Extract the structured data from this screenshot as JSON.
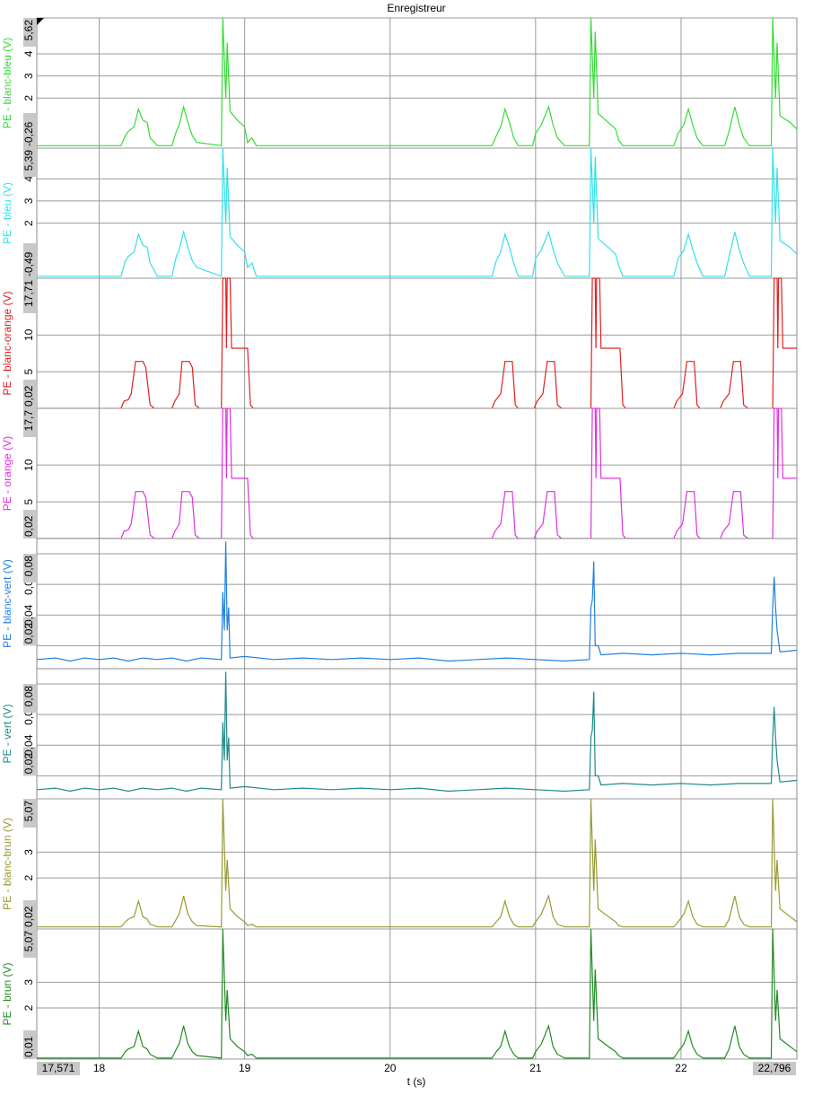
{
  "title": "Enregistreur",
  "chart_data": [
    {
      "type": "line",
      "ylabel": "PE - blanc-bleu (V)",
      "color": "#33dd33",
      "xlim": [
        17.571,
        22.796
      ],
      "ylim": [
        -0.26,
        5.62
      ],
      "yticks": [
        {
          "value": -0.26,
          "label": "-0,26"
        },
        2,
        3,
        4,
        {
          "value": 5.62,
          "label": "5,62"
        }
      ],
      "x": [
        17.571,
        18.15,
        18.18,
        18.2,
        18.24,
        18.27,
        18.3,
        18.33,
        18.35,
        18.4,
        18.5,
        18.53,
        18.55,
        18.58,
        18.61,
        18.64,
        18.67,
        18.84,
        18.85,
        18.87,
        18.88,
        18.9,
        18.95,
        19.0,
        19.02,
        19.05,
        19.08,
        20.7,
        20.73,
        20.76,
        20.79,
        20.82,
        20.85,
        20.88,
        20.98,
        21.0,
        21.04,
        21.09,
        21.12,
        21.15,
        21.2,
        21.37,
        21.38,
        21.4,
        21.41,
        21.43,
        21.5,
        21.55,
        21.57,
        21.6,
        21.95,
        21.98,
        22.02,
        22.05,
        22.08,
        22.11,
        22.15,
        22.3,
        22.33,
        22.37,
        22.4,
        22.43,
        22.47,
        22.62,
        22.63,
        22.65,
        22.66,
        22.68,
        22.75,
        22.796
      ],
      "values": [
        -0.15,
        -0.15,
        0.3,
        0.5,
        0.7,
        1.5,
        1.0,
        0.9,
        0.2,
        -0.15,
        -0.15,
        0.5,
        0.8,
        1.6,
        0.9,
        0.3,
        0.0,
        -0.15,
        5.62,
        2.0,
        4.5,
        1.4,
        1.0,
        0.7,
        0.0,
        0.2,
        -0.15,
        -0.15,
        0.3,
        0.7,
        1.5,
        0.9,
        0.2,
        -0.15,
        -0.15,
        0.4,
        0.8,
        1.6,
        0.8,
        0.2,
        -0.15,
        -0.15,
        5.62,
        2.0,
        5.0,
        1.3,
        0.9,
        0.6,
        0.1,
        -0.15,
        -0.15,
        0.4,
        0.8,
        1.5,
        0.8,
        0.2,
        -0.15,
        -0.15,
        0.5,
        1.6,
        0.8,
        0.2,
        -0.15,
        -0.15,
        5.62,
        2.0,
        4.5,
        1.2,
        0.9,
        0.6
      ]
    },
    {
      "type": "line",
      "ylabel": "PE - bleu (V)",
      "color": "#33e0ea",
      "xlim": [
        17.571,
        22.796
      ],
      "ylim": [
        -0.49,
        5.39
      ],
      "yticks": [
        {
          "value": -0.49,
          "label": "-0,49"
        },
        2,
        3,
        4,
        {
          "value": 5.39,
          "label": "5,39"
        }
      ],
      "x": [
        17.571,
        18.15,
        18.18,
        18.2,
        18.24,
        18.27,
        18.3,
        18.33,
        18.35,
        18.4,
        18.5,
        18.53,
        18.55,
        18.58,
        18.61,
        18.64,
        18.67,
        18.84,
        18.85,
        18.87,
        18.88,
        18.9,
        18.95,
        19.0,
        19.02,
        19.05,
        19.08,
        20.7,
        20.73,
        20.76,
        20.79,
        20.82,
        20.85,
        20.88,
        20.98,
        21.0,
        21.04,
        21.09,
        21.12,
        21.15,
        21.2,
        21.37,
        21.38,
        21.4,
        21.41,
        21.43,
        21.5,
        21.55,
        21.57,
        21.6,
        21.95,
        21.98,
        22.02,
        22.05,
        22.08,
        22.11,
        22.15,
        22.3,
        22.33,
        22.37,
        22.4,
        22.43,
        22.47,
        22.62,
        22.63,
        22.65,
        22.66,
        22.68,
        22.75,
        22.796
      ],
      "values": [
        -0.4,
        -0.4,
        0.3,
        0.5,
        0.7,
        1.5,
        1.0,
        0.9,
        0.2,
        -0.4,
        -0.4,
        0.5,
        0.8,
        1.6,
        0.9,
        0.3,
        0.0,
        -0.4,
        5.39,
        2.0,
        4.5,
        1.4,
        1.0,
        0.7,
        0.0,
        0.2,
        -0.4,
        -0.4,
        0.3,
        0.7,
        1.5,
        0.9,
        0.2,
        -0.4,
        -0.4,
        0.4,
        0.8,
        1.6,
        0.8,
        0.2,
        -0.4,
        -0.4,
        5.39,
        2.0,
        5.0,
        1.3,
        0.9,
        0.6,
        0.1,
        -0.4,
        -0.4,
        0.4,
        0.8,
        1.5,
        0.8,
        0.2,
        -0.4,
        -0.4,
        0.5,
        1.6,
        0.8,
        0.2,
        -0.4,
        -0.4,
        5.39,
        2.0,
        4.5,
        1.2,
        0.9,
        0.6
      ]
    },
    {
      "type": "line",
      "ylabel": "PE - blanc-orange (V)",
      "color": "#e02020",
      "xlim": [
        17.571,
        22.796
      ],
      "ylim": [
        0.02,
        17.71
      ],
      "yticks": [
        {
          "value": 0.02,
          "label": "0,02"
        },
        5,
        10,
        {
          "value": 17.71,
          "label": "17,71"
        }
      ],
      "x": [
        17.571,
        18.15,
        18.17,
        18.2,
        18.22,
        18.25,
        18.3,
        18.32,
        18.35,
        18.38,
        18.5,
        18.52,
        18.55,
        18.57,
        18.62,
        18.64,
        18.66,
        18.69,
        18.84,
        18.85,
        18.87,
        18.875,
        18.88,
        18.9,
        18.91,
        19.02,
        19.04,
        19.06,
        20.7,
        20.72,
        20.76,
        20.79,
        20.84,
        20.86,
        20.88,
        20.99,
        21.01,
        21.05,
        21.08,
        21.13,
        21.15,
        21.18,
        21.38,
        21.39,
        21.41,
        21.415,
        21.42,
        21.44,
        21.45,
        21.58,
        21.6,
        21.62,
        21.95,
        21.97,
        22.01,
        22.04,
        22.09,
        22.11,
        22.13,
        22.27,
        22.29,
        22.33,
        22.36,
        22.41,
        22.43,
        22.46,
        22.63,
        22.64,
        22.66,
        22.665,
        22.67,
        22.69,
        22.7,
        22.796
      ],
      "values": [
        0.02,
        0.02,
        1.0,
        1.2,
        2.0,
        6.4,
        6.4,
        5.6,
        0.5,
        0.02,
        0.02,
        1.0,
        2.0,
        6.4,
        6.4,
        5.6,
        0.5,
        0.02,
        0.02,
        17.71,
        17.71,
        8.2,
        17.71,
        17.71,
        8.2,
        8.2,
        0.5,
        0.02,
        0.02,
        1.0,
        2.0,
        6.4,
        6.4,
        0.5,
        0.02,
        0.02,
        1.0,
        2.0,
        6.4,
        6.4,
        0.5,
        0.02,
        0.02,
        17.71,
        17.71,
        8.2,
        17.71,
        17.71,
        8.2,
        8.2,
        0.5,
        0.02,
        0.02,
        1.0,
        2.0,
        6.4,
        6.4,
        0.5,
        0.02,
        0.02,
        1.0,
        2.0,
        6.4,
        6.4,
        0.5,
        0.02,
        0.02,
        17.71,
        17.71,
        8.2,
        17.71,
        17.71,
        8.2,
        8.2
      ]
    },
    {
      "type": "line",
      "ylabel": "PE - orange (V)",
      "color": "#e030e0",
      "xlim": [
        17.571,
        22.796
      ],
      "ylim": [
        0.02,
        17.7
      ],
      "yticks": [
        {
          "value": 0.02,
          "label": "0,02"
        },
        5,
        10,
        {
          "value": 17.7,
          "label": "17,7"
        }
      ],
      "x": [
        17.571,
        18.15,
        18.17,
        18.2,
        18.22,
        18.25,
        18.3,
        18.32,
        18.35,
        18.38,
        18.5,
        18.52,
        18.55,
        18.57,
        18.62,
        18.64,
        18.66,
        18.69,
        18.84,
        18.85,
        18.87,
        18.875,
        18.88,
        18.9,
        18.91,
        19.02,
        19.04,
        19.06,
        20.7,
        20.72,
        20.76,
        20.79,
        20.84,
        20.86,
        20.88,
        20.99,
        21.01,
        21.05,
        21.08,
        21.13,
        21.15,
        21.18,
        21.38,
        21.39,
        21.41,
        21.415,
        21.42,
        21.44,
        21.45,
        21.58,
        21.6,
        21.62,
        21.95,
        21.97,
        22.01,
        22.04,
        22.09,
        22.11,
        22.13,
        22.27,
        22.29,
        22.33,
        22.36,
        22.41,
        22.43,
        22.46,
        22.63,
        22.64,
        22.66,
        22.665,
        22.67,
        22.69,
        22.7,
        22.796
      ],
      "values": [
        0.02,
        0.02,
        1.0,
        1.2,
        2.0,
        6.4,
        6.4,
        5.6,
        0.5,
        0.02,
        0.02,
        1.0,
        2.0,
        6.4,
        6.4,
        5.6,
        0.5,
        0.02,
        0.02,
        17.7,
        17.7,
        8.2,
        17.7,
        17.7,
        8.2,
        8.2,
        0.5,
        0.02,
        0.02,
        1.0,
        2.0,
        6.4,
        6.4,
        0.5,
        0.02,
        0.02,
        1.0,
        2.0,
        6.4,
        6.4,
        0.5,
        0.02,
        0.02,
        17.7,
        17.7,
        8.2,
        17.7,
        17.7,
        8.2,
        8.2,
        0.5,
        0.02,
        0.02,
        1.0,
        2.0,
        6.4,
        6.4,
        0.5,
        0.02,
        0.02,
        1.0,
        2.0,
        6.4,
        6.4,
        0.5,
        0.02,
        0.02,
        17.7,
        17.7,
        8.2,
        17.7,
        17.7,
        8.2,
        8.2
      ]
    },
    {
      "type": "line",
      "ylabel": "PE - blanc-vert (V)",
      "color": "#2080e0",
      "xlim": [
        17.571,
        22.796
      ],
      "ylim": [
        0.005,
        0.09
      ],
      "yticks": [
        {
          "value": 0.02,
          "label": "0,02"
        },
        {
          "value": 0.04,
          "label": "0,04"
        },
        {
          "value": 0.06,
          "label": "0,06"
        },
        {
          "value": 0.08,
          "label": "0,08"
        }
      ],
      "x": [
        17.571,
        17.7,
        17.8,
        17.9,
        18.0,
        18.1,
        18.2,
        18.3,
        18.4,
        18.5,
        18.6,
        18.7,
        18.84,
        18.85,
        18.86,
        18.87,
        18.88,
        18.89,
        18.9,
        19.0,
        19.2,
        19.4,
        19.6,
        19.8,
        20.0,
        20.2,
        20.4,
        20.6,
        20.8,
        21.0,
        21.2,
        21.37,
        21.38,
        21.39,
        21.4,
        21.41,
        21.43,
        21.45,
        21.6,
        21.8,
        22.0,
        22.2,
        22.4,
        22.62,
        22.63,
        22.64,
        22.65,
        22.66,
        22.68,
        22.796
      ],
      "values": [
        0.011,
        0.012,
        0.01,
        0.012,
        0.011,
        0.012,
        0.01,
        0.012,
        0.011,
        0.012,
        0.01,
        0.012,
        0.011,
        0.055,
        0.03,
        0.088,
        0.03,
        0.045,
        0.012,
        0.013,
        0.011,
        0.012,
        0.011,
        0.012,
        0.011,
        0.012,
        0.01,
        0.011,
        0.012,
        0.011,
        0.01,
        0.011,
        0.045,
        0.05,
        0.075,
        0.02,
        0.02,
        0.014,
        0.015,
        0.014,
        0.015,
        0.014,
        0.015,
        0.015,
        0.045,
        0.065,
        0.045,
        0.03,
        0.016,
        0.017
      ]
    },
    {
      "type": "line",
      "ylabel": "PE - vert (V)",
      "color": "#1f8a8a",
      "xlim": [
        17.571,
        22.796
      ],
      "ylim": [
        0.005,
        0.09
      ],
      "yticks": [
        {
          "value": 0.02,
          "label": "0,02"
        },
        {
          "value": 0.04,
          "label": "0,04"
        },
        {
          "value": 0.06,
          "label": "0,06"
        },
        {
          "value": 0.08,
          "label": "0,08"
        }
      ],
      "x": [
        17.571,
        17.7,
        17.8,
        17.9,
        18.0,
        18.1,
        18.2,
        18.3,
        18.4,
        18.5,
        18.6,
        18.7,
        18.84,
        18.85,
        18.86,
        18.87,
        18.88,
        18.89,
        18.9,
        19.0,
        19.2,
        19.4,
        19.6,
        19.8,
        20.0,
        20.2,
        20.4,
        20.6,
        20.8,
        21.0,
        21.2,
        21.37,
        21.38,
        21.39,
        21.4,
        21.41,
        21.43,
        21.45,
        21.6,
        21.8,
        22.0,
        22.2,
        22.4,
        22.62,
        22.63,
        22.64,
        22.65,
        22.66,
        22.68,
        22.796
      ],
      "values": [
        0.011,
        0.012,
        0.01,
        0.012,
        0.011,
        0.012,
        0.01,
        0.012,
        0.011,
        0.012,
        0.01,
        0.012,
        0.011,
        0.055,
        0.03,
        0.088,
        0.03,
        0.045,
        0.012,
        0.013,
        0.011,
        0.012,
        0.011,
        0.012,
        0.011,
        0.012,
        0.01,
        0.011,
        0.012,
        0.011,
        0.01,
        0.011,
        0.045,
        0.05,
        0.075,
        0.02,
        0.02,
        0.014,
        0.015,
        0.014,
        0.015,
        0.014,
        0.015,
        0.015,
        0.045,
        0.065,
        0.045,
        0.03,
        0.016,
        0.017
      ]
    },
    {
      "type": "line",
      "ylabel": "PE - blanc-brun (V)",
      "color": "#999933",
      "xlim": [
        17.571,
        22.796
      ],
      "ylim": [
        0.02,
        5.07
      ],
      "yticks": [
        {
          "value": 0.02,
          "label": "0,02"
        },
        2,
        3,
        {
          "value": 5.07,
          "label": "5,07"
        }
      ],
      "x": [
        17.571,
        18.15,
        18.18,
        18.2,
        18.24,
        18.27,
        18.3,
        18.33,
        18.35,
        18.4,
        18.5,
        18.53,
        18.55,
        18.58,
        18.61,
        18.64,
        18.67,
        18.84,
        18.85,
        18.87,
        18.88,
        18.9,
        18.95,
        19.0,
        19.02,
        19.05,
        19.08,
        20.7,
        20.73,
        20.76,
        20.79,
        20.82,
        20.85,
        20.88,
        20.98,
        21.0,
        21.04,
        21.09,
        21.12,
        21.15,
        21.2,
        21.37,
        21.38,
        21.4,
        21.41,
        21.43,
        21.5,
        21.55,
        21.57,
        21.6,
        21.95,
        21.98,
        22.02,
        22.05,
        22.08,
        22.11,
        22.15,
        22.3,
        22.33,
        22.37,
        22.4,
        22.43,
        22.47,
        22.62,
        22.63,
        22.65,
        22.66,
        22.68,
        22.75,
        22.796
      ],
      "values": [
        0.1,
        0.1,
        0.3,
        0.4,
        0.5,
        1.1,
        0.5,
        0.4,
        0.2,
        0.1,
        0.1,
        0.4,
        0.6,
        1.3,
        0.6,
        0.3,
        0.15,
        0.1,
        5.07,
        1.5,
        2.7,
        0.8,
        0.5,
        0.3,
        0.15,
        0.2,
        0.1,
        0.1,
        0.3,
        0.5,
        1.1,
        0.5,
        0.2,
        0.1,
        0.1,
        0.3,
        0.6,
        1.3,
        0.5,
        0.2,
        0.1,
        0.1,
        5.07,
        1.5,
        3.5,
        0.8,
        0.5,
        0.3,
        0.15,
        0.1,
        0.1,
        0.3,
        0.6,
        1.1,
        0.5,
        0.2,
        0.1,
        0.1,
        0.4,
        1.3,
        0.5,
        0.2,
        0.1,
        0.1,
        5.07,
        1.5,
        2.7,
        0.8,
        0.5,
        0.3
      ]
    },
    {
      "type": "line",
      "ylabel": "PE - brun (V)",
      "color": "#228b22",
      "xlabel": "t (s)",
      "xlim": [
        17.571,
        22.796
      ],
      "ylim": [
        0.01,
        5.07
      ],
      "yticks": [
        {
          "value": 0.01,
          "label": "0,01"
        },
        2,
        3,
        {
          "value": 5.07,
          "label": "5,07"
        }
      ],
      "xticks": [
        {
          "value": 17.571,
          "label": "17,571"
        },
        18,
        19,
        20,
        21,
        22,
        {
          "value": 22.796,
          "label": "22,796"
        }
      ],
      "x": [
        17.571,
        18.15,
        18.18,
        18.2,
        18.24,
        18.27,
        18.3,
        18.33,
        18.35,
        18.4,
        18.5,
        18.53,
        18.55,
        18.58,
        18.61,
        18.64,
        18.67,
        18.84,
        18.85,
        18.87,
        18.88,
        18.9,
        18.95,
        19.0,
        19.02,
        19.05,
        19.08,
        20.7,
        20.73,
        20.76,
        20.79,
        20.82,
        20.85,
        20.88,
        20.98,
        21.0,
        21.04,
        21.09,
        21.12,
        21.15,
        21.2,
        21.37,
        21.38,
        21.4,
        21.41,
        21.43,
        21.5,
        21.55,
        21.57,
        21.6,
        21.95,
        21.98,
        22.02,
        22.05,
        22.08,
        22.11,
        22.15,
        22.3,
        22.33,
        22.37,
        22.4,
        22.43,
        22.47,
        22.62,
        22.63,
        22.65,
        22.66,
        22.68,
        22.75,
        22.796
      ],
      "values": [
        0.05,
        0.05,
        0.3,
        0.4,
        0.5,
        1.1,
        0.5,
        0.4,
        0.2,
        0.05,
        0.05,
        0.4,
        0.6,
        1.3,
        0.6,
        0.3,
        0.15,
        0.05,
        5.07,
        1.5,
        2.7,
        0.8,
        0.5,
        0.3,
        0.15,
        0.2,
        0.05,
        0.05,
        0.3,
        0.5,
        1.1,
        0.5,
        0.2,
        0.05,
        0.05,
        0.3,
        0.6,
        1.3,
        0.5,
        0.2,
        0.05,
        0.05,
        5.07,
        1.5,
        3.5,
        0.8,
        0.5,
        0.3,
        0.15,
        0.05,
        0.05,
        0.3,
        0.6,
        1.1,
        0.5,
        0.2,
        0.05,
        0.05,
        0.4,
        1.3,
        0.5,
        0.2,
        0.05,
        0.05,
        5.07,
        1.5,
        2.7,
        0.8,
        0.5,
        0.3
      ]
    }
  ]
}
